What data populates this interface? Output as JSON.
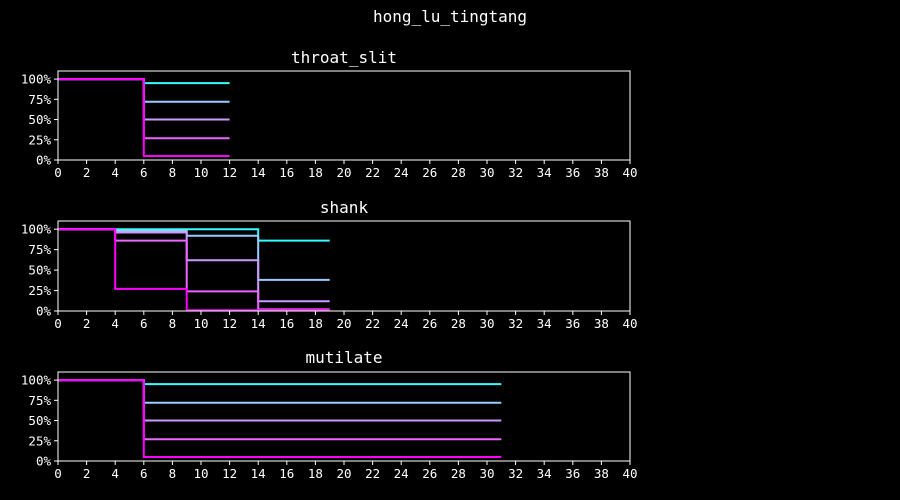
{
  "figure_title": "hong_lu_tingtang",
  "colors": {
    "background": "#000000",
    "axes": "#ffffff",
    "text": "#ffffff",
    "series_palette": [
      "#33ffff",
      "#99ccff",
      "#cc99ff",
      "#ee66ff",
      "#ff00ff"
    ]
  },
  "chart_data": [
    {
      "type": "line",
      "step": "post",
      "title": "throat_slit",
      "xlim": [
        0,
        40
      ],
      "ylim": [
        0,
        1.1
      ],
      "xticks": [
        0,
        2,
        4,
        6,
        8,
        10,
        12,
        14,
        16,
        18,
        20,
        22,
        24,
        26,
        28,
        30,
        32,
        34,
        36,
        38,
        40
      ],
      "yticks": [
        0,
        0.25,
        0.5,
        0.75,
        1.0
      ],
      "ytick_labels": [
        "0%",
        "25%",
        "50%",
        "75%",
        "100%"
      ],
      "series": [
        {
          "color": "#33ffff",
          "x": [
            0,
            6,
            12
          ],
          "y": [
            1.0,
            0.95,
            0.95
          ]
        },
        {
          "color": "#99ccff",
          "x": [
            0,
            6,
            12
          ],
          "y": [
            1.0,
            0.72,
            0.72
          ]
        },
        {
          "color": "#cc99ff",
          "x": [
            0,
            6,
            12
          ],
          "y": [
            1.0,
            0.5,
            0.5
          ]
        },
        {
          "color": "#ee66ff",
          "x": [
            0,
            6,
            12
          ],
          "y": [
            1.0,
            0.27,
            0.27
          ]
        },
        {
          "color": "#ff00ff",
          "x": [
            0,
            6,
            12
          ],
          "y": [
            1.0,
            0.05,
            0.05
          ]
        }
      ]
    },
    {
      "type": "line",
      "step": "post",
      "title": "shank",
      "xlim": [
        0,
        40
      ],
      "ylim": [
        0,
        1.1
      ],
      "xticks": [
        0,
        2,
        4,
        6,
        8,
        10,
        12,
        14,
        16,
        18,
        20,
        22,
        24,
        26,
        28,
        30,
        32,
        34,
        36,
        38,
        40
      ],
      "yticks": [
        0,
        0.25,
        0.5,
        0.75,
        1.0
      ],
      "ytick_labels": [
        "0%",
        "25%",
        "50%",
        "75%",
        "100%"
      ],
      "series": [
        {
          "color": "#33ffff",
          "x": [
            0,
            9,
            14,
            19
          ],
          "y": [
            1.0,
            1.0,
            0.86,
            0.86
          ]
        },
        {
          "color": "#99ccff",
          "x": [
            0,
            4,
            9,
            14,
            19
          ],
          "y": [
            1.0,
            0.98,
            0.92,
            0.38,
            0.38
          ]
        },
        {
          "color": "#cc99ff",
          "x": [
            0,
            4,
            9,
            14,
            19
          ],
          "y": [
            1.0,
            0.96,
            0.62,
            0.12,
            0.12
          ]
        },
        {
          "color": "#ee66ff",
          "x": [
            0,
            4,
            9,
            14,
            19
          ],
          "y": [
            1.0,
            0.86,
            0.24,
            0.02,
            0.02
          ]
        },
        {
          "color": "#ff00ff",
          "x": [
            0,
            4,
            9,
            19
          ],
          "y": [
            1.0,
            0.27,
            0.01,
            0.01
          ]
        }
      ]
    },
    {
      "type": "line",
      "step": "post",
      "title": "mutilate",
      "xlim": [
        0,
        40
      ],
      "ylim": [
        0,
        1.1
      ],
      "xticks": [
        0,
        2,
        4,
        6,
        8,
        10,
        12,
        14,
        16,
        18,
        20,
        22,
        24,
        26,
        28,
        30,
        32,
        34,
        36,
        38,
        40
      ],
      "yticks": [
        0,
        0.25,
        0.5,
        0.75,
        1.0
      ],
      "ytick_labels": [
        "0%",
        "25%",
        "50%",
        "75%",
        "100%"
      ],
      "series": [
        {
          "color": "#33ffff",
          "x": [
            0,
            6,
            31
          ],
          "y": [
            1.0,
            0.95,
            0.95
          ]
        },
        {
          "color": "#99ccff",
          "x": [
            0,
            6,
            31
          ],
          "y": [
            1.0,
            0.72,
            0.72
          ]
        },
        {
          "color": "#cc99ff",
          "x": [
            0,
            6,
            31
          ],
          "y": [
            1.0,
            0.5,
            0.5
          ]
        },
        {
          "color": "#ee66ff",
          "x": [
            0,
            6,
            31
          ],
          "y": [
            1.0,
            0.27,
            0.27
          ]
        },
        {
          "color": "#ff00ff",
          "x": [
            0,
            6,
            31
          ],
          "y": [
            1.0,
            0.05,
            0.05
          ]
        }
      ]
    }
  ]
}
